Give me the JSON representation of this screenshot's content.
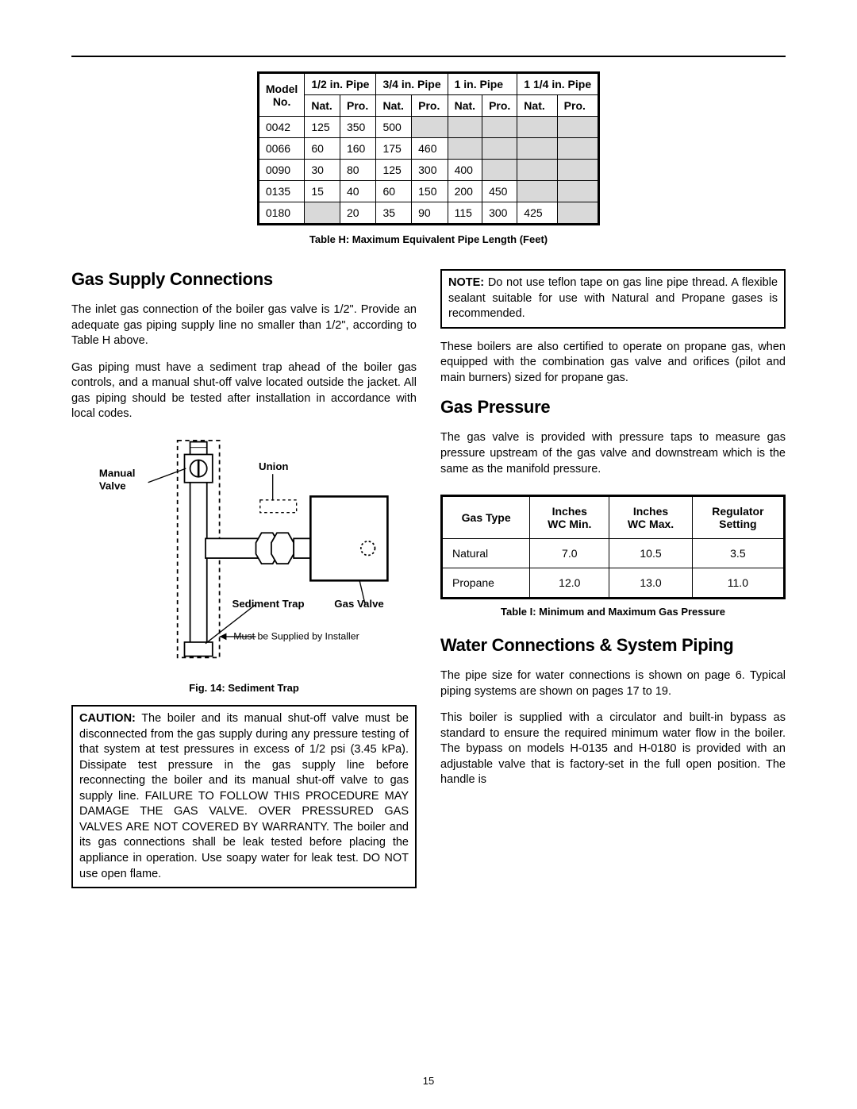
{
  "tableH": {
    "caption": "Table H: Maximum Equivalent Pipe Length (Feet)",
    "modelHeader": "Model No.",
    "sizes": [
      "1/2 in. Pipe",
      "3/4 in. Pipe",
      "1 in. Pipe",
      "1 1/4 in. Pipe"
    ],
    "sub": [
      "Nat.",
      "Pro."
    ],
    "rows": [
      {
        "model": "0042",
        "cells": [
          "125",
          "350",
          "500",
          "",
          "",
          "",
          "",
          ""
        ]
      },
      {
        "model": "0066",
        "cells": [
          "60",
          "160",
          "175",
          "460",
          "",
          "",
          "",
          ""
        ]
      },
      {
        "model": "0090",
        "cells": [
          "30",
          "80",
          "125",
          "300",
          "400",
          "",
          "",
          ""
        ]
      },
      {
        "model": "0135",
        "cells": [
          "15",
          "40",
          "60",
          "150",
          "200",
          "450",
          "",
          ""
        ]
      },
      {
        "model": "0180",
        "cells": [
          "",
          "20",
          "35",
          "90",
          "115",
          "300",
          "425",
          ""
        ]
      }
    ]
  },
  "left": {
    "h1": "Gas Supply Connections",
    "p1": "The inlet gas connection of the boiler gas valve is 1/2\". Provide an adequate gas piping supply line no smaller than 1/2\", according to Table H above.",
    "p2": "Gas piping must have a sediment trap ahead of the boiler gas controls, and a manual shut-off valve located outside the jacket. All gas piping should be tested after installation in accordance with local codes.",
    "figCaption": "Fig. 14: Sediment Trap",
    "cautionLead": "CAUTION:",
    "caution": "The boiler and its manual shut-off valve must be disconnected from the gas supply during any pressure testing of that system at test pressures in excess of 1/2 psi (3.45 kPa). Dissipate test pressure in the gas supply line before reconnecting the boiler and its manual shut-off valve to gas supply line. FAILURE TO FOLLOW THIS PROCEDURE MAY DAMAGE THE GAS VALVE. OVER PRESSURED GAS VALVES ARE NOT COVERED BY WARRANTY. The boiler and its gas connections shall be leak tested before placing the appliance in operation. Use soapy water for leak test. DO NOT use open flame."
  },
  "right": {
    "noteLead": "NOTE:",
    "note": "Do not use teflon tape on gas line pipe thread. A flexible sealant suitable for use with Natural and Propane gases is recommended.",
    "p1": "These boilers are also certified to operate on propane gas, when equipped with the combination gas valve and orifices (pilot and main burners) sized for propane gas.",
    "h2": "Gas Pressure",
    "p2": "The gas valve is provided with pressure taps to measure gas pressure upstream of the gas valve and downstream which is the same as the manifold pressure.",
    "tableICaption": "Table I: Minimum and Maximum Gas Pressure",
    "h3": "Water Connections & System Piping",
    "p3": "The pipe size for water connections is shown on page 6. Typical piping systems are shown on pages 17 to 19.",
    "p4": "This boiler is supplied with a circulator and built-in bypass as standard to ensure the required minimum water flow in the boiler. The bypass on models H-0135 and H-0180 is provided with an adjustable valve that is factory-set in the full open position. The handle is"
  },
  "tableI": {
    "headers": [
      "Gas Type",
      "Inches WC Min.",
      "Inches WC Max.",
      "Regulator Setting"
    ],
    "rows": [
      [
        "Natural",
        "7.0",
        "10.5",
        "3.5"
      ],
      [
        "Propane",
        "12.0",
        "13.0",
        "11.0"
      ]
    ]
  },
  "figure": {
    "labels": {
      "manualValve": "Manual Valve",
      "union": "Union",
      "sedimentTrap": "Sediment Trap",
      "gasValve": "Gas Valve",
      "supplied": "Must be Supplied by Installer"
    }
  },
  "pageNum": "15"
}
